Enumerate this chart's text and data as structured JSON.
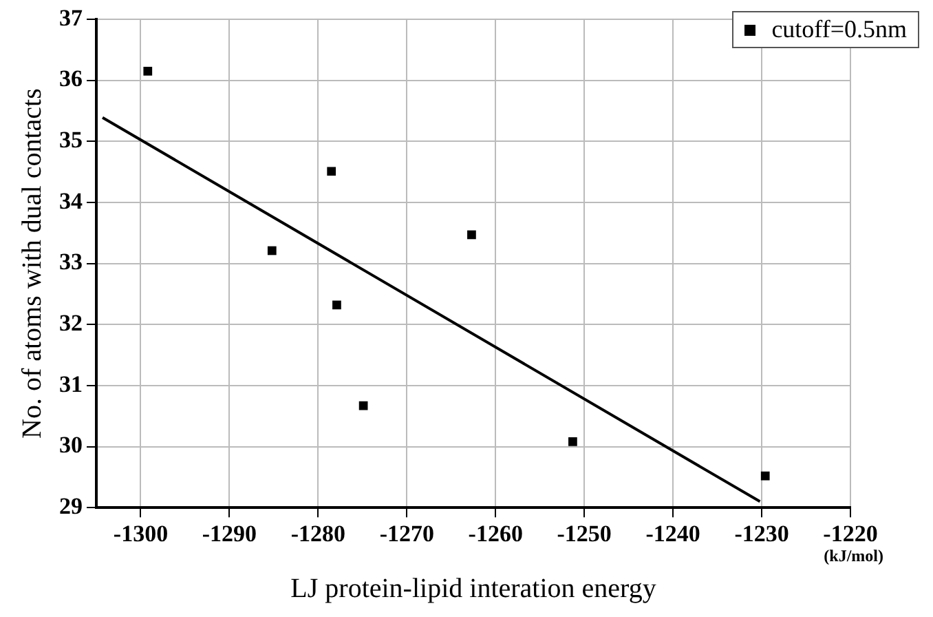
{
  "chart_data": {
    "type": "scatter",
    "xlabel": "LJ protein-lipid interation energy",
    "ylabel": "No. of atoms with dual contacts",
    "annotations": [
      "(kJ/mol)"
    ],
    "series": [
      {
        "name": "cutoff=0.5nm",
        "color": "#000000",
        "marker": "square",
        "x": [
          -1299.2,
          -1285.2,
          -1278.5,
          -1277.9,
          -1274.9,
          -1262.7,
          -1251.3,
          -1229.6
        ],
        "values": [
          36.15,
          33.21,
          34.51,
          32.32,
          30.67,
          33.47,
          30.08,
          29.52
        ]
      },
      {
        "type": "line",
        "color": "#000000",
        "marker": "none",
        "x": [
          -1304.3,
          -1230.2
        ],
        "values": [
          35.39,
          29.1
        ]
      }
    ],
    "xlim": [
      -1305,
      -1220
    ],
    "xticks": [
      -1300,
      -1290,
      -1280,
      -1270,
      -1260,
      -1250,
      -1240,
      -1230,
      -1220
    ],
    "ylim": [
      29,
      37
    ],
    "yticks": [
      29,
      30,
      31,
      32,
      33,
      34,
      35,
      36,
      37
    ],
    "grid": true,
    "legend": "top right"
  }
}
